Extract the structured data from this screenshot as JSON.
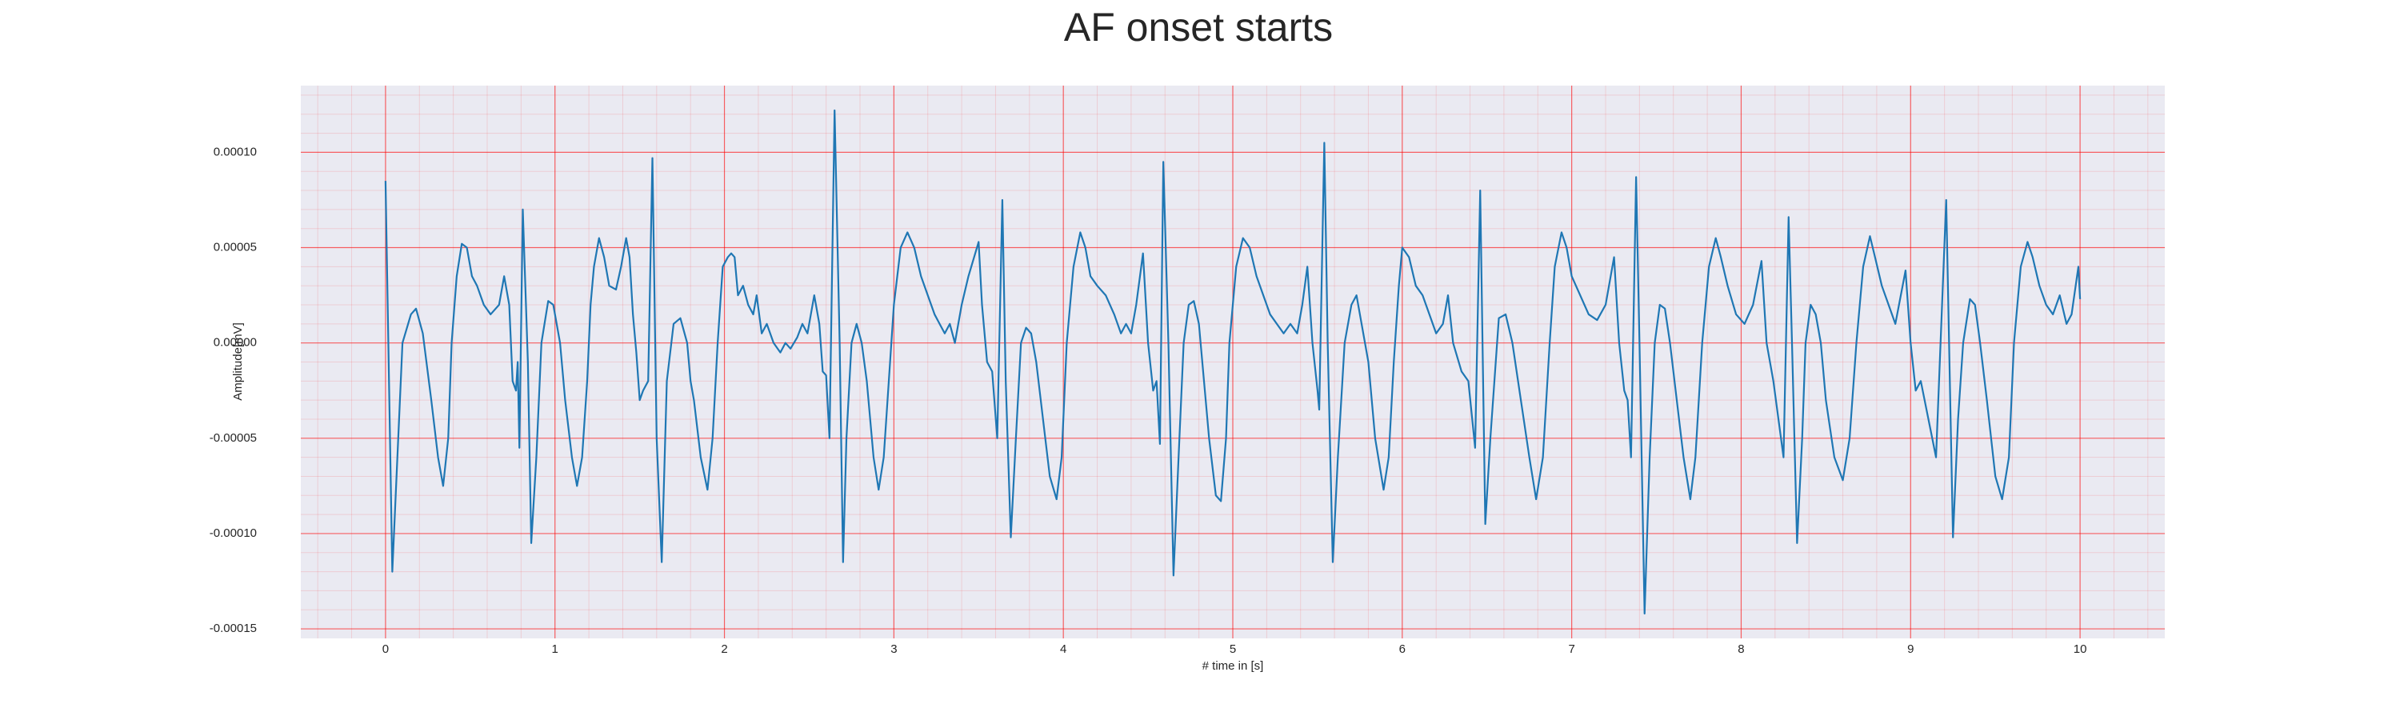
{
  "chart_data": {
    "type": "line",
    "title": "AF onset starts",
    "xlabel": "# time in [s]",
    "ylabel": "Amplitude[mV]",
    "color": "#1f77b4",
    "grid": true,
    "minor_grid": true,
    "background": "#eaeaf2",
    "grid_color": "#ff0000",
    "xlim": [
      -0.5,
      10.5
    ],
    "xticks": [
      0,
      1,
      2,
      3,
      4,
      5,
      6,
      7,
      8,
      9,
      10
    ],
    "ylim": [
      -0.000155,
      0.000135
    ],
    "yticks": [
      {
        "value": -0.00015,
        "label": "-0.00015"
      },
      {
        "value": -0.0001,
        "label": "-0.00010"
      },
      {
        "value": -5e-05,
        "label": "-0.00005"
      },
      {
        "value": 0,
        "label": "0.00000"
      },
      {
        "value": 5e-05,
        "label": "0.00005"
      },
      {
        "value": 0.0001,
        "label": "0.00010"
      }
    ],
    "x": [
      0,
      0.04,
      0.1,
      0.15,
      0.18,
      0.22,
      0.27,
      0.31,
      0.34,
      0.37,
      0.39,
      0.42,
      0.45,
      0.48,
      0.51,
      0.54,
      0.58,
      0.62,
      0.67,
      0.7,
      0.73,
      0.75,
      0.77,
      0.78,
      0.79,
      0.81,
      0.84,
      0.86,
      0.89,
      0.92,
      0.96,
      0.99,
      1.03,
      1.06,
      1.1,
      1.13,
      1.16,
      1.19,
      1.21,
      1.23,
      1.26,
      1.29,
      1.32,
      1.36,
      1.39,
      1.42,
      1.44,
      1.46,
      1.48,
      1.5,
      1.52,
      1.55,
      1.575,
      1.6,
      1.63,
      1.66,
      1.7,
      1.74,
      1.78,
      1.8,
      1.82,
      1.86,
      1.9,
      1.93,
      1.96,
      1.99,
      2.02,
      2.04,
      2.06,
      2.08,
      2.11,
      2.14,
      2.17,
      2.19,
      2.22,
      2.25,
      2.29,
      2.33,
      2.36,
      2.39,
      2.43,
      2.46,
      2.49,
      2.53,
      2.56,
      2.58,
      2.6,
      2.62,
      2.65,
      2.68,
      2.7,
      2.72,
      2.75,
      2.78,
      2.81,
      2.84,
      2.88,
      2.91,
      2.94,
      2.97,
      3.0,
      3.04,
      3.08,
      3.12,
      3.16,
      3.2,
      3.24,
      3.27,
      3.3,
      3.33,
      3.36,
      3.4,
      3.44,
      3.5,
      3.52,
      3.55,
      3.58,
      3.61,
      3.64,
      3.66,
      3.69,
      3.72,
      3.75,
      3.78,
      3.81,
      3.84,
      3.88,
      3.92,
      3.96,
      3.99,
      4.02,
      4.06,
      4.1,
      4.13,
      4.16,
      4.2,
      4.25,
      4.3,
      4.34,
      4.37,
      4.4,
      4.43,
      4.47,
      4.5,
      4.53,
      4.55,
      4.57,
      4.59,
      4.62,
      4.65,
      4.68,
      4.71,
      4.74,
      4.77,
      4.8,
      4.83,
      4.86,
      4.9,
      4.93,
      4.96,
      4.98,
      5.02,
      5.06,
      5.1,
      5.14,
      5.18,
      5.22,
      5.26,
      5.3,
      5.34,
      5.38,
      5.41,
      5.44,
      5.47,
      5.5,
      5.51,
      5.54,
      5.56,
      5.59,
      5.62,
      5.66,
      5.7,
      5.73,
      5.76,
      5.8,
      5.84,
      5.89,
      5.92,
      5.95,
      5.98,
      6.0,
      6.04,
      6.08,
      6.12,
      6.16,
      6.2,
      6.24,
      6.27,
      6.3,
      6.35,
      6.39,
      6.43,
      6.46,
      6.49,
      6.52,
      6.57,
      6.61,
      6.65,
      6.7,
      6.75,
      6.79,
      6.83,
      6.87,
      6.9,
      6.94,
      6.97,
      7.0,
      7.05,
      7.1,
      7.15,
      7.2,
      7.25,
      7.28,
      7.31,
      7.33,
      7.35,
      7.38,
      7.4,
      7.43,
      7.46,
      7.49,
      7.52,
      7.55,
      7.58,
      7.62,
      7.66,
      7.7,
      7.73,
      7.77,
      7.81,
      7.85,
      7.88,
      7.92,
      7.97,
      8.02,
      8.07,
      8.12,
      8.15,
      8.19,
      8.25,
      8.28,
      8.3,
      8.33,
      8.36,
      8.38,
      8.41,
      8.44,
      8.47,
      8.5,
      8.55,
      8.6,
      8.64,
      8.68,
      8.72,
      8.76,
      8.79,
      8.83,
      8.87,
      8.91,
      8.97,
      9.0,
      9.03,
      9.06,
      9.15,
      9.21,
      9.25,
      9.28,
      9.31,
      9.35,
      9.38,
      9.41,
      9.45,
      9.5,
      9.54,
      9.58,
      9.61,
      9.65,
      9.69,
      9.72,
      9.76,
      9.8,
      9.84,
      9.88,
      9.92,
      9.95,
      9.99,
      10.0
    ],
    "values": [
      8.5e-05,
      -0.00012,
      0,
      1.5e-05,
      1.8e-05,
      5e-06,
      -3e-05,
      -6e-05,
      -7.5e-05,
      -5e-05,
      0,
      3.5e-05,
      5.2e-05,
      5e-05,
      3.5e-05,
      3e-05,
      2e-05,
      1.5e-05,
      2e-05,
      3.5e-05,
      2e-05,
      -2e-05,
      -2.5e-05,
      -1e-05,
      -5.5e-05,
      7e-05,
      -1e-05,
      -0.000105,
      -6e-05,
      0,
      2.2e-05,
      2e-05,
      0,
      -3e-05,
      -6e-05,
      -7.5e-05,
      -6e-05,
      -2e-05,
      2e-05,
      4e-05,
      5.5e-05,
      4.5e-05,
      3e-05,
      2.8e-05,
      4e-05,
      5.5e-05,
      4.5e-05,
      1.5e-05,
      -5e-06,
      -3e-05,
      -2.5e-05,
      -2e-05,
      9.7e-05,
      -5e-05,
      -0.000115,
      -2e-05,
      1e-05,
      1.3e-05,
      0,
      -2e-05,
      -3e-05,
      -6e-05,
      -7.7e-05,
      -5e-05,
      0,
      4e-05,
      4.5e-05,
      4.7e-05,
      4.5e-05,
      2.5e-05,
      3e-05,
      2e-05,
      1.5e-05,
      2.5e-05,
      5e-06,
      1e-05,
      0,
      -5e-06,
      0,
      -3e-06,
      3e-06,
      1e-05,
      5e-06,
      2.5e-05,
      1e-05,
      -1.5e-05,
      -1.7e-05,
      -5e-05,
      0.000122,
      0,
      -0.000115,
      -5e-05,
      0,
      1e-05,
      0,
      -2e-05,
      -6e-05,
      -7.7e-05,
      -6e-05,
      -2e-05,
      2e-05,
      5e-05,
      5.8e-05,
      5e-05,
      3.5e-05,
      2.5e-05,
      1.5e-05,
      1e-05,
      5e-06,
      1e-05,
      0,
      2e-05,
      3.5e-05,
      5.3e-05,
      2e-05,
      -1e-05,
      -1.5e-05,
      -5e-05,
      7.5e-05,
      -2e-05,
      -0.000102,
      -5e-05,
      0,
      8e-06,
      5e-06,
      -1e-05,
      -4e-05,
      -7e-05,
      -8.2e-05,
      -6e-05,
      0,
      4e-05,
      5.8e-05,
      5e-05,
      3.5e-05,
      3e-05,
      2.5e-05,
      1.5e-05,
      5e-06,
      1e-05,
      5e-06,
      2e-05,
      4.7e-05,
      0,
      -2.5e-05,
      -2e-05,
      -5.3e-05,
      9.5e-05,
      0,
      -0.000122,
      -6e-05,
      0,
      2e-05,
      2.2e-05,
      1e-05,
      -2e-05,
      -5e-05,
      -8e-05,
      -8.3e-05,
      -5e-05,
      0,
      4e-05,
      5.5e-05,
      5e-05,
      3.5e-05,
      2.5e-05,
      1.5e-05,
      1e-05,
      5e-06,
      1e-05,
      5e-06,
      2e-05,
      4e-05,
      0,
      -2.5e-05,
      -3.5e-05,
      0.000105,
      0,
      -0.000115,
      -6e-05,
      0,
      2e-05,
      2.5e-05,
      1e-05,
      -1e-05,
      -5e-05,
      -7.7e-05,
      -6e-05,
      -1e-05,
      3e-05,
      5e-05,
      4.5e-05,
      3e-05,
      2.5e-05,
      1.5e-05,
      5e-06,
      1e-05,
      2.5e-05,
      0,
      -1.5e-05,
      -2e-05,
      -5.5e-05,
      8e-05,
      -9.5e-05,
      -5e-05,
      1.3e-05,
      1.5e-05,
      0,
      -3e-05,
      -6e-05,
      -8.2e-05,
      -6e-05,
      0,
      4e-05,
      5.8e-05,
      5e-05,
      3.5e-05,
      2.5e-05,
      1.5e-05,
      1.2e-05,
      2e-05,
      4.5e-05,
      0,
      -2.5e-05,
      -3e-05,
      -6e-05,
      8.7e-05,
      0,
      -0.000142,
      -6e-05,
      0,
      2e-05,
      1.8e-05,
      0,
      -3e-05,
      -6e-05,
      -8.2e-05,
      -6e-05,
      0,
      4e-05,
      5.5e-05,
      4.5e-05,
      3e-05,
      1.5e-05,
      1e-05,
      2e-05,
      4.3e-05,
      0,
      -2e-05,
      -6e-05,
      6.6e-05,
      0,
      -0.000105,
      -5e-05,
      0,
      2e-05,
      1.5e-05,
      0,
      -3e-05,
      -6e-05,
      -7.2e-05,
      -5e-05,
      0,
      4e-05,
      5.6e-05,
      4.5e-05,
      3e-05,
      2e-05,
      1e-05,
      3.8e-05,
      0,
      -2.5e-05,
      -2e-05,
      -6e-05,
      7.5e-05,
      -0.000102,
      -4e-05,
      0,
      2.3e-05,
      2e-05,
      0,
      -3e-05,
      -7e-05,
      -8.2e-05,
      -6e-05,
      0,
      4e-05,
      5.3e-05,
      4.5e-05,
      3e-05,
      2e-05,
      1.5e-05,
      2.5e-05,
      1e-05,
      1.5e-05,
      4e-05,
      2.3e-05
    ]
  }
}
